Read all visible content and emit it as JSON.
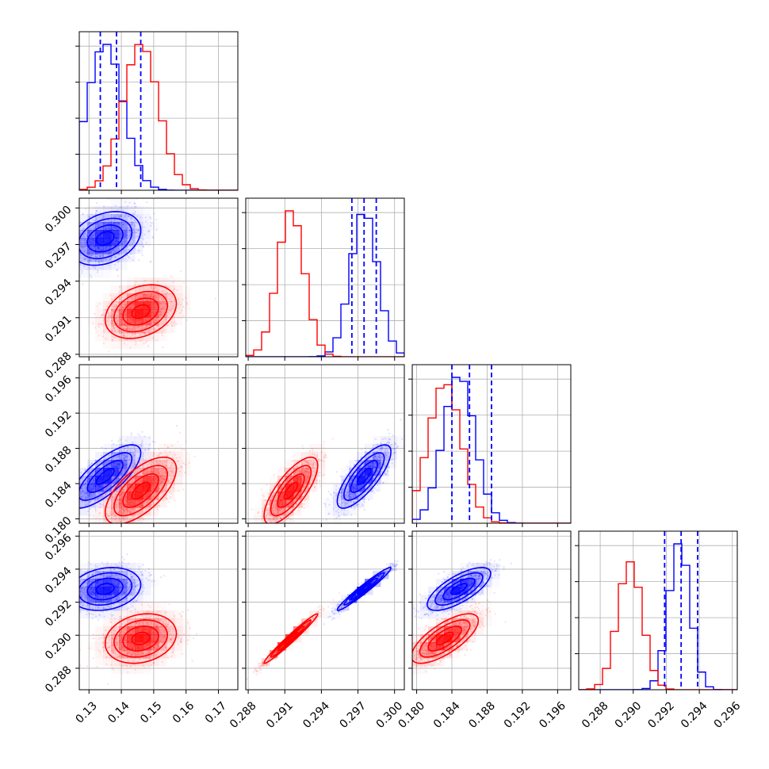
{
  "chart_data": {
    "type": "corner",
    "grid": true,
    "legend": "none",
    "params": [
      {
        "key": "p0",
        "lim": [
          0.127,
          0.176
        ],
        "ticks": [
          0.13,
          0.14,
          0.15,
          0.16,
          0.17
        ],
        "tick_labels": [
          "0.13",
          "0.14",
          "0.15",
          "0.16",
          "0.17"
        ]
      },
      {
        "key": "p1",
        "lim": [
          0.2878,
          0.3008
        ],
        "ticks": [
          0.288,
          0.291,
          0.294,
          0.297,
          0.3
        ],
        "tick_labels": [
          "0.288",
          "0.291",
          "0.294",
          "0.297",
          "0.300"
        ]
      },
      {
        "key": "p2",
        "lim": [
          0.1795,
          0.1975
        ],
        "ticks": [
          0.18,
          0.184,
          0.188,
          0.192,
          0.196
        ],
        "tick_labels": [
          "0.180",
          "0.184",
          "0.188",
          "0.192",
          "0.196"
        ]
      },
      {
        "key": "p3",
        "lim": [
          0.2867,
          0.2963
        ],
        "ticks": [
          0.288,
          0.29,
          0.292,
          0.294,
          0.296
        ],
        "tick_labels": [
          "0.288",
          "0.290",
          "0.292",
          "0.294",
          "0.296"
        ]
      }
    ],
    "series": [
      {
        "color": "#0000ff",
        "mean": [
          0.135,
          0.2975,
          0.1848,
          0.2928
        ],
        "sd": [
          0.0055,
          0.0011,
          0.0018,
          0.00065
        ],
        "corr": [
          [
            1.0,
            0.3,
            0.75,
            0.2
          ],
          [
            0.3,
            1.0,
            0.78,
            0.97
          ],
          [
            0.75,
            0.78,
            1.0,
            0.72
          ],
          [
            0.2,
            0.97,
            0.72,
            1.0
          ]
        ],
        "quantiles": [
          [
            0.1335,
            0.1385,
            0.146
          ],
          [
            0.2965,
            0.2975,
            0.2985
          ],
          [
            0.184,
            0.186,
            0.1885
          ],
          [
            0.2919,
            0.2929,
            0.2939
          ]
        ]
      },
      {
        "color": "#ff0000",
        "mean": [
          0.146,
          0.2915,
          0.1832,
          0.2898
        ],
        "sd": [
          0.0055,
          0.0011,
          0.0019,
          0.00075
        ],
        "corr": [
          [
            1.0,
            0.3,
            0.65,
            0.2
          ],
          [
            0.3,
            1.0,
            0.75,
            0.98
          ],
          [
            0.65,
            0.75,
            1.0,
            0.72
          ],
          [
            0.2,
            0.98,
            0.72,
            1.0
          ]
        ]
      }
    ]
  }
}
